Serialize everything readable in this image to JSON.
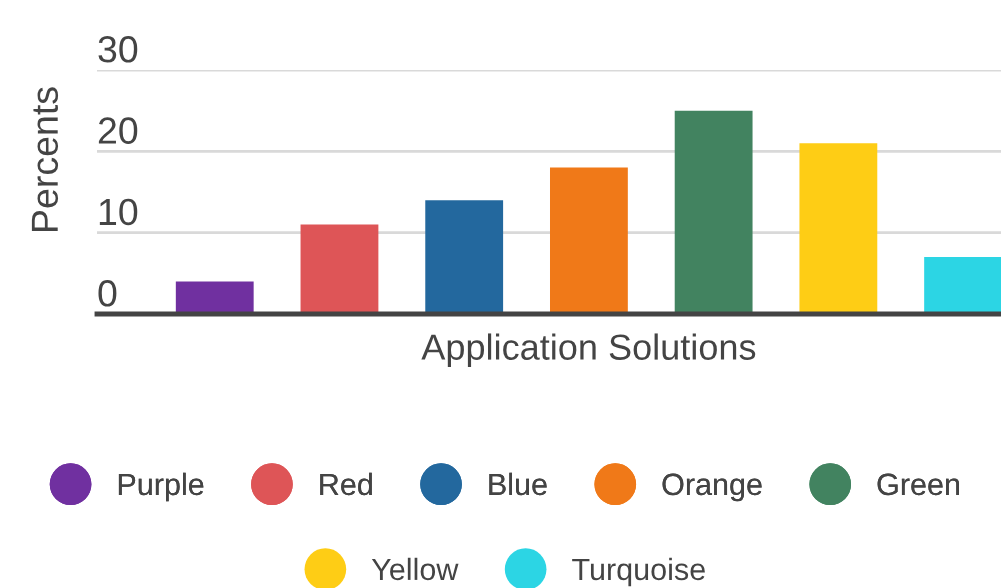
{
  "chart_data": {
    "type": "bar",
    "categories": [
      "Application Solutions"
    ],
    "ylabel": "Percents",
    "ylim": [
      0,
      30
    ],
    "yticks": [
      0,
      10,
      20,
      30
    ],
    "grid": "y",
    "legend": "bottom",
    "series": [
      {
        "name": "Purple",
        "color": "#7030a0",
        "values": [
          4
        ]
      },
      {
        "name": "Red",
        "color": "#de5557",
        "values": [
          11
        ]
      },
      {
        "name": "Blue",
        "color": "#23689e",
        "values": [
          14
        ]
      },
      {
        "name": "Orange",
        "color": "#f07918",
        "values": [
          18
        ]
      },
      {
        "name": "Green",
        "color": "#428360",
        "values": [
          25
        ]
      },
      {
        "name": "Yellow",
        "color": "#fecd15",
        "values": [
          21
        ]
      },
      {
        "name": "Turquoise",
        "color": "#2cd5e4",
        "values": [
          7
        ]
      }
    ]
  }
}
